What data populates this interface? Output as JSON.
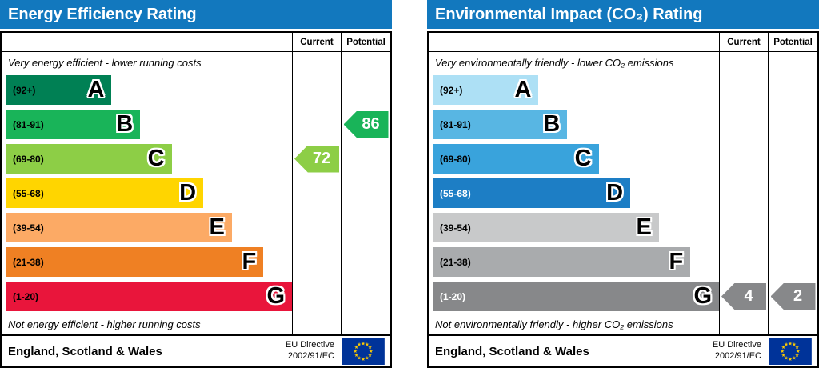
{
  "theme": {
    "header_bg": "#1278be",
    "header_text": "#ffffff",
    "border_color": "#000000",
    "eu_flag_bg": "#003399",
    "eu_flag_stars": "#ffcc00"
  },
  "chart_data": [
    {
      "type": "bar",
      "id": "energy-efficiency",
      "title": "Energy Efficiency Rating",
      "columns": {
        "current": "Current",
        "potential": "Potential"
      },
      "top_note": "Very energy efficient - lower running costs",
      "bottom_note": "Not energy efficient - higher running costs",
      "bands": [
        {
          "letter": "A",
          "range": "(92+)",
          "color": "#008054",
          "width_pct": 37,
          "range_color": "#000000"
        },
        {
          "letter": "B",
          "range": "(81-91)",
          "color": "#19b459",
          "width_pct": 47,
          "range_color": "#000000"
        },
        {
          "letter": "C",
          "range": "(69-80)",
          "color": "#8dce46",
          "width_pct": 58,
          "range_color": "#000000"
        },
        {
          "letter": "D",
          "range": "(55-68)",
          "color": "#ffd500",
          "width_pct": 69,
          "range_color": "#000000"
        },
        {
          "letter": "E",
          "range": "(39-54)",
          "color": "#fcaa65",
          "width_pct": 79,
          "range_color": "#000000"
        },
        {
          "letter": "F",
          "range": "(21-38)",
          "color": "#ef8023",
          "width_pct": 90,
          "range_color": "#000000"
        },
        {
          "letter": "G",
          "range": "(1-20)",
          "color": "#e9153b",
          "width_pct": 100,
          "range_color": "#000000"
        }
      ],
      "current": {
        "value": 72,
        "band": "C",
        "band_index": 2,
        "color": "#8dce46"
      },
      "potential": {
        "value": 86,
        "band": "B",
        "band_index": 1,
        "color": "#19b459"
      },
      "footer": {
        "region": "England, Scotland & Wales",
        "directive_line1": "EU Directive",
        "directive_line2": "2002/91/EC"
      }
    },
    {
      "type": "bar",
      "id": "environmental-impact-co2",
      "title": "Environmental Impact (CO₂) Rating",
      "columns": {
        "current": "Current",
        "potential": "Potential"
      },
      "top_note": "Very environmentally friendly - lower CO₂ emissions",
      "bottom_note": "Not environmentally friendly - higher CO₂ emissions",
      "bands": [
        {
          "letter": "A",
          "range": "(92+)",
          "color": "#ade0f5",
          "width_pct": 37,
          "range_color": "#000000"
        },
        {
          "letter": "B",
          "range": "(81-91)",
          "color": "#58b6e3",
          "width_pct": 47,
          "range_color": "#000000"
        },
        {
          "letter": "C",
          "range": "(69-80)",
          "color": "#39a3dc",
          "width_pct": 58,
          "range_color": "#000000"
        },
        {
          "letter": "D",
          "range": "(55-68)",
          "color": "#1d7ec5",
          "width_pct": 69,
          "range_color": "#ffffff"
        },
        {
          "letter": "E",
          "range": "(39-54)",
          "color": "#c8c9ca",
          "width_pct": 79,
          "range_color": "#000000"
        },
        {
          "letter": "F",
          "range": "(21-38)",
          "color": "#a9abad",
          "width_pct": 90,
          "range_color": "#000000"
        },
        {
          "letter": "G",
          "range": "(1-20)",
          "color": "#87888a",
          "width_pct": 100,
          "range_color": "#ffffff"
        }
      ],
      "current": {
        "value": 4,
        "band": "G",
        "band_index": 6,
        "color": "#87888a"
      },
      "potential": {
        "value": 2,
        "band": "G",
        "band_index": 6,
        "color": "#87888a"
      },
      "footer": {
        "region": "England, Scotland & Wales",
        "directive_line1": "EU Directive",
        "directive_line2": "2002/91/EC"
      }
    }
  ]
}
